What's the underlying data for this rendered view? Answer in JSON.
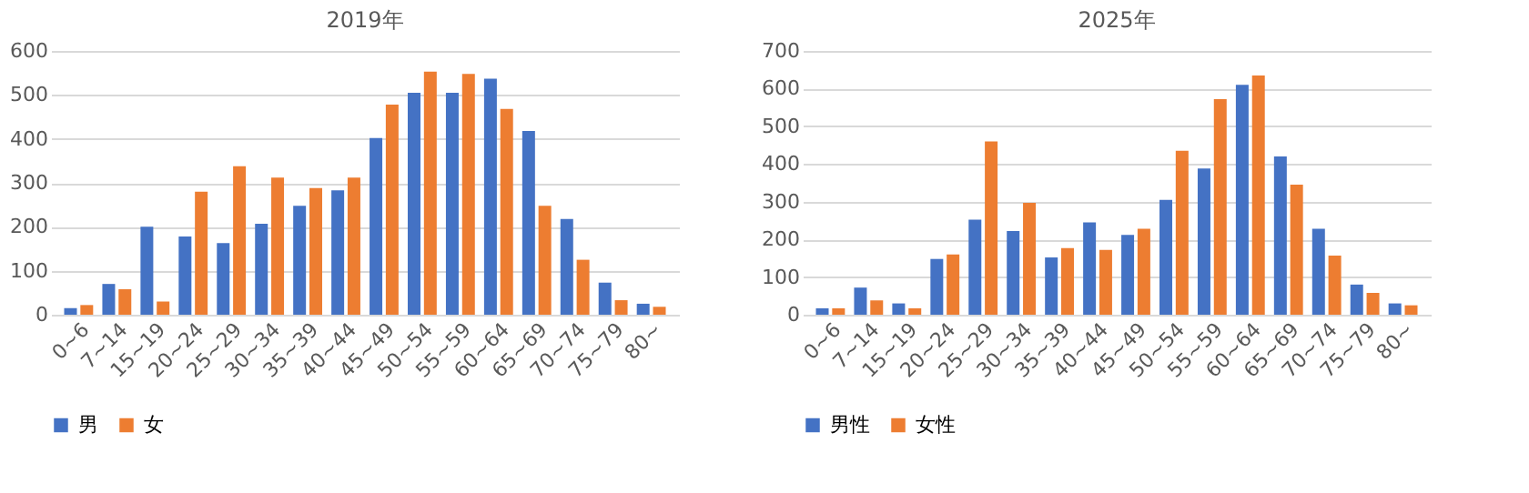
{
  "chart_data": [
    {
      "type": "bar",
      "title": "2019年",
      "categories": [
        "0~6",
        "7~14",
        "15~19",
        "20~24",
        "25~29",
        "30~34",
        "35~39",
        "40~44",
        "45~49",
        "50~54",
        "55~59",
        "60~64",
        "65~69",
        "70~74",
        "75~79",
        "80~"
      ],
      "series": [
        {
          "name": "男",
          "color": "#4472c4",
          "values": [
            15,
            70,
            200,
            178,
            163,
            207,
            248,
            283,
            402,
            505,
            505,
            537,
            418,
            218,
            73,
            25
          ]
        },
        {
          "name": "女",
          "color": "#ed7d31",
          "values": [
            22,
            58,
            30,
            280,
            338,
            312,
            288,
            312,
            478,
            553,
            548,
            468,
            248,
            125,
            33,
            18
          ]
        }
      ],
      "ylim": [
        0,
        600
      ],
      "yticks": [
        0,
        100,
        200,
        300,
        400,
        500,
        600
      ],
      "grid": "y",
      "legend": "bottom"
    },
    {
      "type": "bar",
      "title": "2025年",
      "categories": [
        "0~6",
        "7~14",
        "15~19",
        "20~24",
        "25~29",
        "30~34",
        "35~39",
        "40~44",
        "45~49",
        "50~54",
        "55~59",
        "60~64",
        "65~69",
        "70~74",
        "75~79",
        "80~"
      ],
      "series": [
        {
          "name": "男性",
          "color": "#4472c4",
          "values": [
            17,
            72,
            30,
            148,
            252,
            222,
            152,
            245,
            212,
            305,
            388,
            610,
            420,
            228,
            80,
            30
          ]
        },
        {
          "name": "女性",
          "color": "#ed7d31",
          "values": [
            17,
            38,
            17,
            160,
            460,
            297,
            177,
            172,
            228,
            435,
            572,
            635,
            345,
            157,
            58,
            25
          ]
        }
      ],
      "ylim": [
        0,
        700
      ],
      "yticks": [
        0,
        100,
        200,
        300,
        400,
        500,
        600,
        700
      ],
      "grid": "y",
      "legend": "bottom"
    }
  ]
}
